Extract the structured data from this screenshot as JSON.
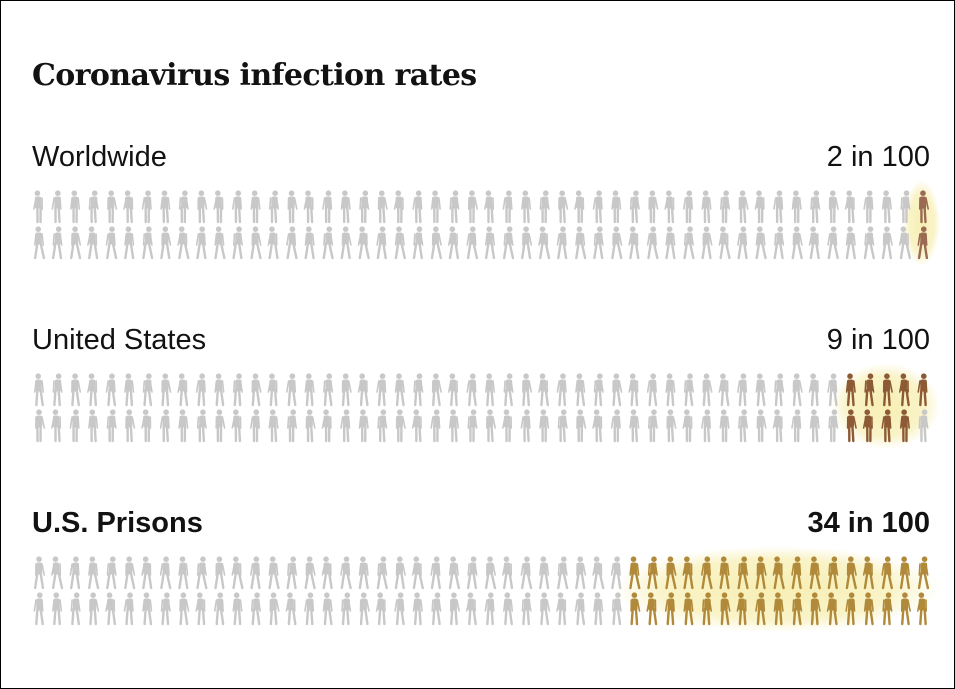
{
  "title": "Coronavirus infection rates",
  "colors": {
    "uninfected": "#c8c8c8",
    "infected_worldwide": "#9a6a52",
    "infected_us": "#8c5a34",
    "infected_prisons": "#b08a3a",
    "highlight": "#f7eeb0",
    "text": "#121212"
  },
  "chart_data": {
    "type": "pictogram",
    "title": "Coronavirus infection rates",
    "unit_total": 100,
    "figures_per_row": 50,
    "rows": [
      {
        "label": "Worldwide",
        "rate_text": "2 in 100",
        "infected": 2,
        "total": 100,
        "emphasis": false
      },
      {
        "label": "United States",
        "rate_text": "9 in 100",
        "infected": 9,
        "total": 100,
        "emphasis": false
      },
      {
        "label": "U.S. Prisons",
        "rate_text": "34 in 100",
        "infected": 34,
        "total": 100,
        "emphasis": true
      }
    ]
  }
}
